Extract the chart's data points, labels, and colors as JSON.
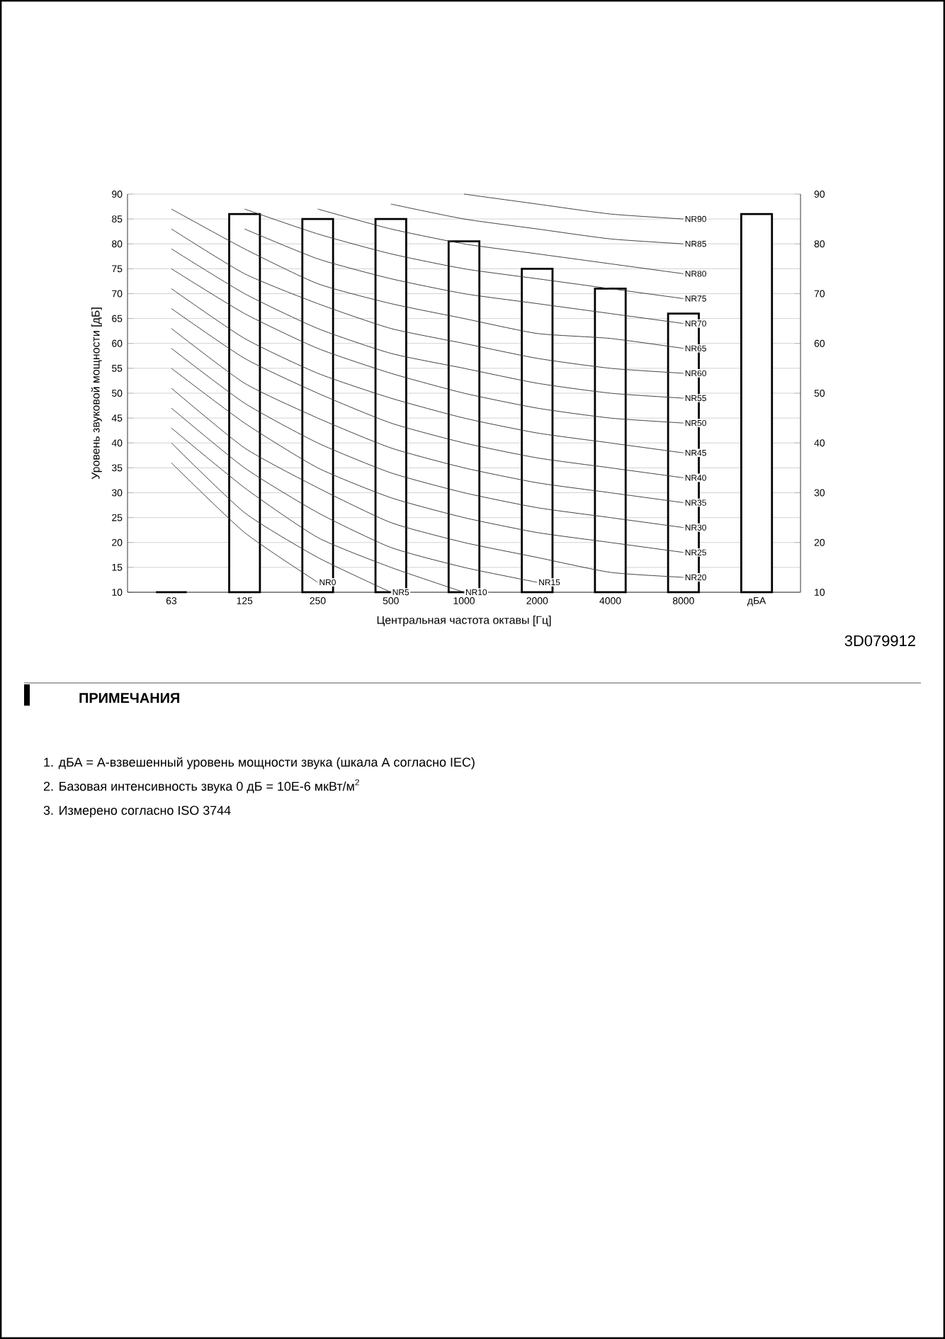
{
  "chart_data": {
    "type": "bar",
    "xlabel": "Центральная частота октавы [Гц]",
    "ylabel": "Уровень звуковой мощности [дБ]",
    "categories": [
      "63",
      "125",
      "250",
      "500",
      "1000",
      "2000",
      "4000",
      "8000",
      "дБА"
    ],
    "series": [
      {
        "color": "#000000",
        "values": [
          10,
          86,
          85,
          85,
          80.5,
          75,
          71,
          66,
          86
        ]
      },
      {
        "type": "line",
        "name": "NR0",
        "color": "#404040",
        "values": [
          36,
          22,
          12,
          null,
          null,
          null,
          null,
          null,
          null
        ]
      },
      {
        "type": "line",
        "name": "NR5",
        "color": "#404040",
        "values": [
          40,
          26,
          17,
          10,
          null,
          null,
          null,
          null,
          null
        ]
      },
      {
        "type": "line",
        "name": "NR10",
        "color": "#404040",
        "values": [
          43,
          31,
          21,
          15,
          10,
          null,
          null,
          null,
          null
        ]
      },
      {
        "type": "line",
        "name": "NR15",
        "color": "#404040",
        "values": [
          47,
          35,
          26,
          19,
          15,
          12,
          null,
          null,
          null
        ]
      },
      {
        "type": "line",
        "name": "NR20",
        "color": "#404040",
        "values": [
          51,
          39,
          31,
          24,
          20,
          17,
          14,
          13,
          null
        ]
      },
      {
        "type": "line",
        "name": "NR25",
        "color": "#404040",
        "values": [
          55,
          44,
          35,
          29,
          25,
          22,
          20,
          18,
          null
        ]
      },
      {
        "type": "line",
        "name": "NR30",
        "color": "#404040",
        "values": [
          59,
          48,
          40,
          34,
          30,
          27,
          25,
          23,
          null
        ]
      },
      {
        "type": "line",
        "name": "NR35",
        "color": "#404040",
        "values": [
          63,
          52,
          45,
          39,
          35,
          32,
          30,
          28,
          null
        ]
      },
      {
        "type": "line",
        "name": "NR40",
        "color": "#404040",
        "values": [
          67,
          57,
          50,
          44,
          40,
          37,
          35,
          33,
          null
        ]
      },
      {
        "type": "line",
        "name": "NR45",
        "color": "#404040",
        "values": [
          71,
          61,
          54,
          49,
          45,
          42,
          40,
          38,
          null
        ]
      },
      {
        "type": "line",
        "name": "NR50",
        "color": "#404040",
        "values": [
          75,
          66,
          59,
          54,
          50,
          47,
          45,
          44,
          null
        ]
      },
      {
        "type": "line",
        "name": "NR55",
        "color": "#404040",
        "values": [
          79,
          70,
          63,
          58,
          55,
          52,
          50,
          49,
          null
        ]
      },
      {
        "type": "line",
        "name": "NR60",
        "color": "#404040",
        "values": [
          83,
          74,
          68,
          63,
          60,
          57,
          55,
          54,
          null
        ]
      },
      {
        "type": "line",
        "name": "NR65",
        "color": "#404040",
        "values": [
          87,
          79,
          72,
          68,
          65,
          62,
          61,
          59,
          null
        ]
      },
      {
        "type": "line",
        "name": "NR70",
        "color": "#404040",
        "values": [
          null,
          83,
          77,
          73,
          70,
          68,
          66,
          64,
          null
        ]
      },
      {
        "type": "line",
        "name": "NR75",
        "color": "#404040",
        "values": [
          null,
          87,
          82,
          78,
          75,
          73,
          71,
          69,
          null
        ]
      },
      {
        "type": "line",
        "name": "NR80",
        "color": "#404040",
        "values": [
          null,
          null,
          87,
          83,
          80,
          78,
          76,
          74,
          null
        ]
      },
      {
        "type": "line",
        "name": "NR85",
        "color": "#404040",
        "values": [
          null,
          null,
          null,
          88,
          85,
          83,
          81,
          80,
          null
        ]
      },
      {
        "type": "line",
        "name": "NR90",
        "color": "#404040",
        "values": [
          null,
          null,
          null,
          null,
          90,
          88,
          86,
          85,
          null
        ]
      }
    ],
    "ylim": [
      10,
      90
    ],
    "yticks": [
      10,
      15,
      20,
      25,
      30,
      35,
      40,
      45,
      50,
      55,
      60,
      65,
      70,
      75,
      80,
      85,
      90
    ],
    "y2lim": [
      10,
      90
    ],
    "y2ticks": [
      10,
      20,
      30,
      40,
      50,
      60,
      70,
      80,
      90
    ],
    "grid": "y",
    "annotations": [
      "3D079912",
      "ПРИМЕЧАНИЯ",
      "1.  дБА = А-взвешенный уровень мощности звука (шкала А согласно IEC)",
      "2.  Базовая интенсивность звука 0 дБ = 10E-6 мкВт/м$^{2}$",
      "3.  Измерено согласно  ISO 3744"
    ]
  }
}
